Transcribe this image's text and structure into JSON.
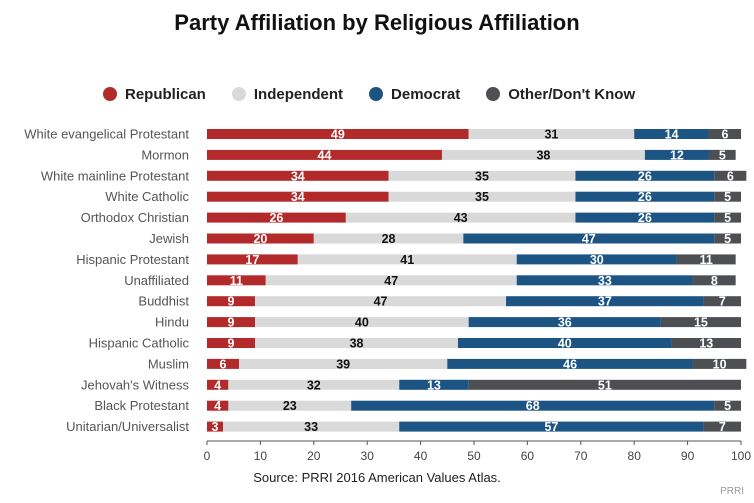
{
  "chart_data": {
    "type": "bar",
    "orientation": "horizontal",
    "stacked": true,
    "title": "Party Affiliation by Religious Affiliation",
    "categories": [
      "White evangelical Protestant",
      "Mormon",
      "White mainline Protestant",
      "White Catholic",
      "Orthodox Christian",
      "Jewish",
      "Hispanic Protestant",
      "Unaffiliated",
      "Buddhist",
      "Hindu",
      "Hispanic Catholic",
      "Muslim",
      "Jehovah's Witness",
      "Black Protestant",
      "Unitarian/Universalist"
    ],
    "series": [
      {
        "name": "Republican",
        "color": "#b22a2a",
        "values": [
          49,
          44,
          34,
          34,
          26,
          20,
          17,
          11,
          9,
          9,
          9,
          6,
          4,
          4,
          3
        ]
      },
      {
        "name": "Independent",
        "color": "#d9d9d9",
        "values": [
          31,
          38,
          35,
          35,
          43,
          28,
          41,
          47,
          47,
          40,
          38,
          39,
          32,
          23,
          33
        ]
      },
      {
        "name": "Democrat",
        "color": "#1c5584",
        "values": [
          14,
          12,
          26,
          26,
          26,
          47,
          30,
          33,
          37,
          36,
          40,
          46,
          13,
          68,
          57
        ]
      },
      {
        "name": "Other/Don't Know",
        "color": "#4d4f52",
        "values": [
          6,
          5,
          6,
          5,
          5,
          5,
          11,
          8,
          7,
          15,
          13,
          10,
          51,
          5,
          7
        ]
      }
    ],
    "xlim": [
      0,
      100
    ],
    "xticks": [
      0,
      10,
      20,
      30,
      40,
      50,
      60,
      70,
      80,
      90,
      100
    ],
    "grid": false,
    "legend_position": "top",
    "source": "Source: PRRI 2016 American Values Atlas.",
    "credit": "PRRI"
  }
}
